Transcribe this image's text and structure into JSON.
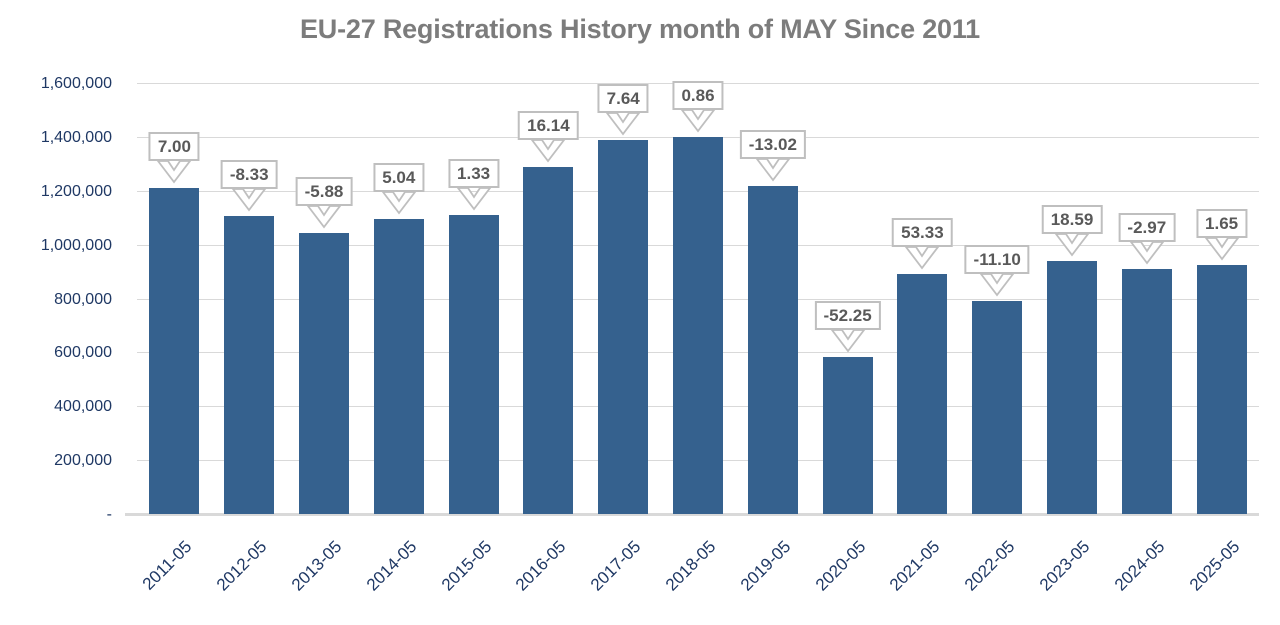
{
  "chart_data": {
    "type": "bar",
    "title": "EU-27 Registrations History month of MAY Since 2011",
    "xlabel": "",
    "ylabel": "",
    "ylim": [
      0,
      1600000
    ],
    "grid": true,
    "legend": false,
    "categories": [
      "2011-05",
      "2012-05",
      "2013-05",
      "2014-05",
      "2015-05",
      "2016-05",
      "2017-05",
      "2018-05",
      "2019-05",
      "2020-05",
      "2021-05",
      "2022-05",
      "2023-05",
      "2024-05",
      "2025-05"
    ],
    "values": [
      1210000,
      1108000,
      1042000,
      1095000,
      1109000,
      1288000,
      1387000,
      1399000,
      1217000,
      581000,
      891000,
      792000,
      939000,
      911000,
      926000
    ],
    "pct_change_labels": [
      "7.00",
      "-8.33",
      "-5.88",
      "5.04",
      "1.33",
      "16.14",
      "7.64",
      "0.86",
      "-13.02",
      "-52.25",
      "53.33",
      "-11.10",
      "18.59",
      "-2.97",
      "1.65"
    ],
    "y_ticks": [
      {
        "value": 1600000,
        "label": "1,600,000"
      },
      {
        "value": 1400000,
        "label": "1,400,000"
      },
      {
        "value": 1200000,
        "label": "1,200,000"
      },
      {
        "value": 1000000,
        "label": "1,000,000"
      },
      {
        "value": 800000,
        "label": "800,000"
      },
      {
        "value": 600000,
        "label": "600,000"
      },
      {
        "value": 400000,
        "label": "400,000"
      },
      {
        "value": 200000,
        "label": "200,000"
      },
      {
        "value": 0,
        "label": "-"
      }
    ],
    "colors": {
      "bar": "#35618E",
      "axis_text": "#1F3864",
      "title_text": "#7C7C7C",
      "callout_text": "#595959",
      "callout_border": "#BFBFBF",
      "gridline": "#D9D9D9",
      "axis_line": "#D9D9D9",
      "background": "#FFFFFF"
    }
  }
}
